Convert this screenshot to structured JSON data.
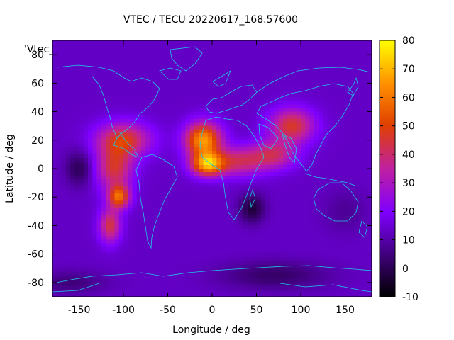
{
  "chart_data": {
    "type": "heatmap",
    "title": "VTEC / TECU 20220617_168.57600",
    "xlabel": "Longitude / deg",
    "ylabel": "Latitude / deg",
    "series_label": "'Vtec_",
    "xlim": [
      -180,
      180
    ],
    "ylim": [
      -90,
      90
    ],
    "xticks": [
      -150,
      -100,
      -50,
      0,
      50,
      100,
      150
    ],
    "yticks": [
      -80,
      -60,
      -40,
      -20,
      0,
      20,
      40,
      60,
      80
    ],
    "colorbar": {
      "range": [
        -10,
        80
      ],
      "ticks": [
        -10,
        0,
        10,
        20,
        30,
        40,
        50,
        60,
        70,
        80
      ],
      "colormap": [
        "#000000",
        "#3a0070",
        "#7f00ff",
        "#c020a0",
        "#e04000",
        "#ff9000",
        "#ffff00"
      ]
    },
    "background_vtec": 14,
    "features": [
      {
        "lon": -10,
        "lat": 20,
        "vtec": 66,
        "wlon": 20,
        "wlat": 12
      },
      {
        "lon": -5,
        "lat": 3,
        "vtec": 64,
        "wlon": 18,
        "wlat": 8
      },
      {
        "lon": 30,
        "lat": 5,
        "vtec": 40,
        "wlon": 30,
        "wlat": 10
      },
      {
        "lon": -100,
        "lat": 20,
        "vtec": 47,
        "wlon": 30,
        "wlat": 12
      },
      {
        "lon": -110,
        "lat": 0,
        "vtec": 44,
        "wlon": 20,
        "wlat": 15
      },
      {
        "lon": -105,
        "lat": -20,
        "vtec": 55,
        "wlon": 12,
        "wlat": 8
      },
      {
        "lon": -115,
        "lat": -40,
        "vtec": 44,
        "wlon": 12,
        "wlat": 12
      },
      {
        "lon": 90,
        "lat": 30,
        "vtec": 46,
        "wlon": 25,
        "wlat": 12
      },
      {
        "lon": 70,
        "lat": 10,
        "vtec": 38,
        "wlon": 25,
        "wlat": 10
      },
      {
        "lon": -150,
        "lat": 0,
        "vtec": 2,
        "wlon": 15,
        "wlat": 12
      },
      {
        "lon": 45,
        "lat": -28,
        "vtec": -2,
        "wlon": 14,
        "wlat": 10
      },
      {
        "lon": 70,
        "lat": -75,
        "vtec": 4,
        "wlon": 60,
        "wlat": 10
      },
      {
        "lon": -160,
        "lat": -80,
        "vtec": 6,
        "wlon": 40,
        "wlat": 8
      },
      {
        "lon": 150,
        "lat": -30,
        "vtec": 9,
        "wlon": 25,
        "wlat": 15
      }
    ]
  }
}
